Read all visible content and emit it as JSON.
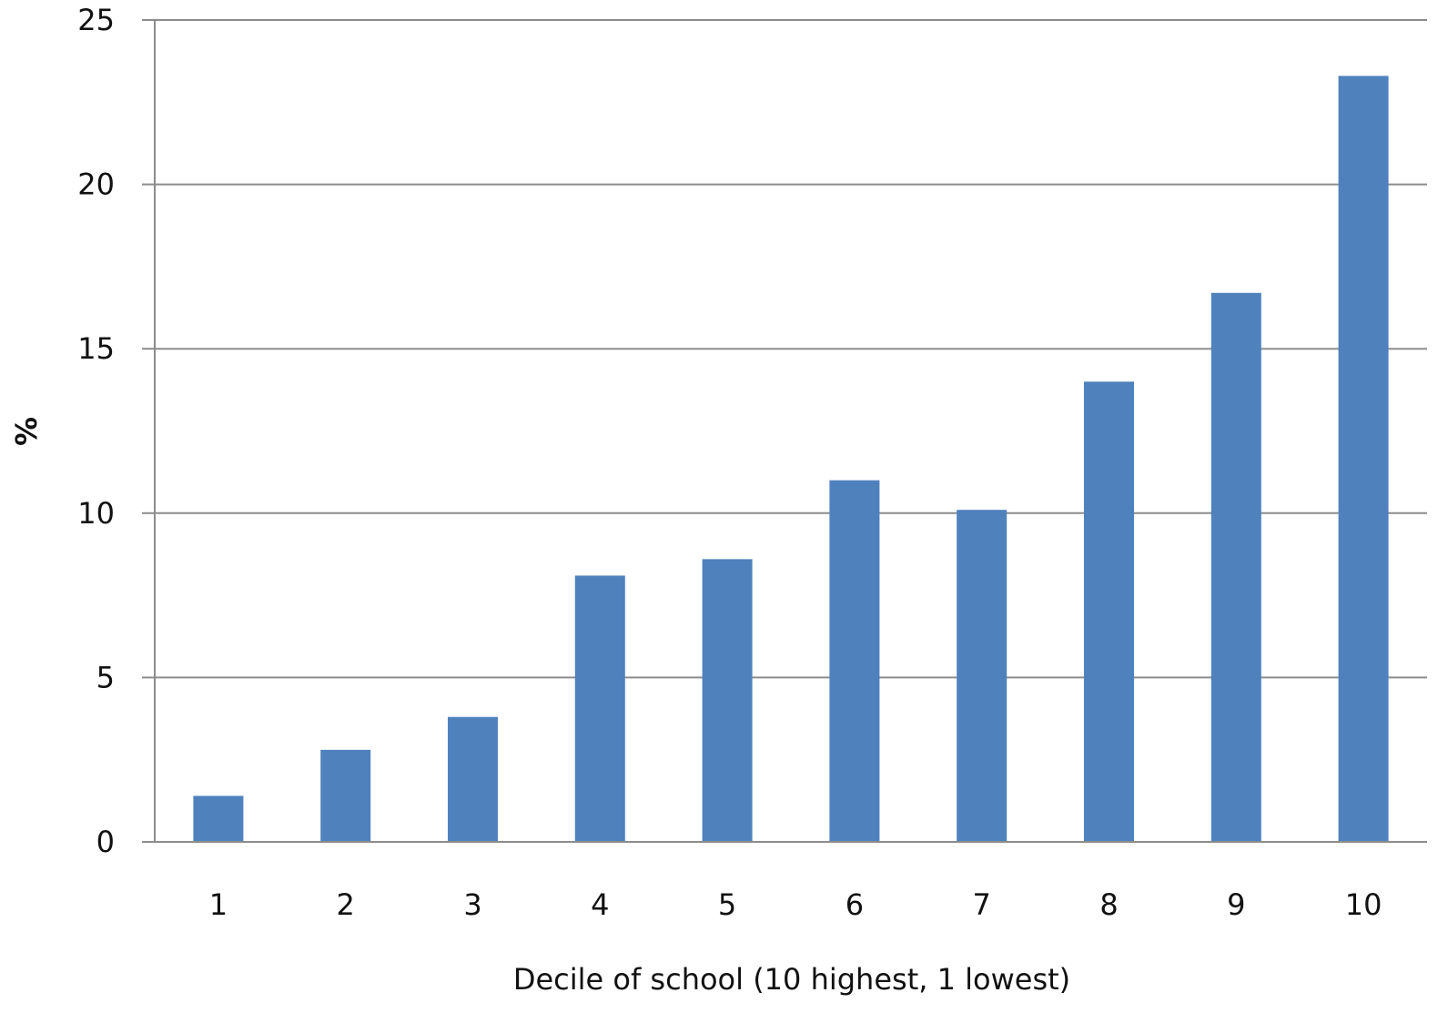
{
  "chart_data": {
    "type": "bar",
    "categories": [
      "1",
      "2",
      "3",
      "4",
      "5",
      "6",
      "7",
      "8",
      "9",
      "10"
    ],
    "values": [
      1.4,
      2.8,
      3.8,
      8.1,
      8.6,
      11.0,
      10.1,
      14.0,
      16.7,
      23.3
    ],
    "xlabel": "Decile of school (10 highest, 1 lowest)",
    "ylabel": "%",
    "ylim": [
      0,
      25
    ],
    "yticks": [
      0,
      5,
      10,
      15,
      20,
      25
    ],
    "grid": true,
    "legend": "none",
    "colors": {
      "bar": "#4f81bd",
      "grid": "#8c8c8c",
      "axis": "#8c8c8c"
    }
  }
}
